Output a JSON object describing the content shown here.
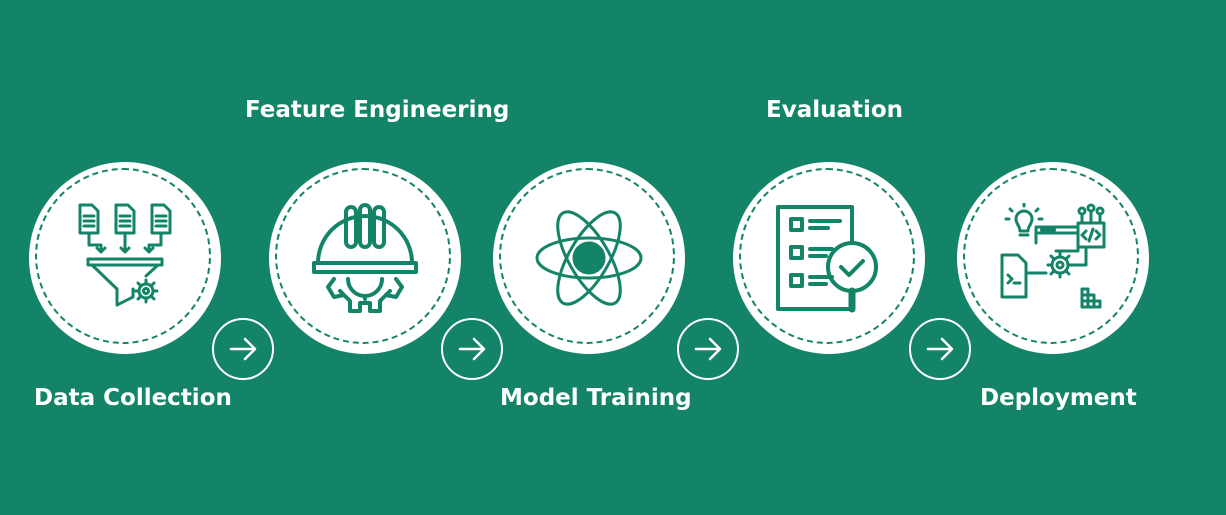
{
  "steps": [
    {
      "label": "Data Collection",
      "icon": "data-funnel-icon"
    },
    {
      "label": "Feature Engineering",
      "icon": "hardhat-gear-icon"
    },
    {
      "label": "Model Training",
      "icon": "atom-icon"
    },
    {
      "label": "Evaluation",
      "icon": "checklist-magnifier-icon"
    },
    {
      "label": "Deployment",
      "icon": "deployment-tools-icon"
    }
  ],
  "colors": {
    "background": "#138468",
    "icon": "#138468",
    "circle": "#ffffff",
    "text": "#ffffff"
  }
}
